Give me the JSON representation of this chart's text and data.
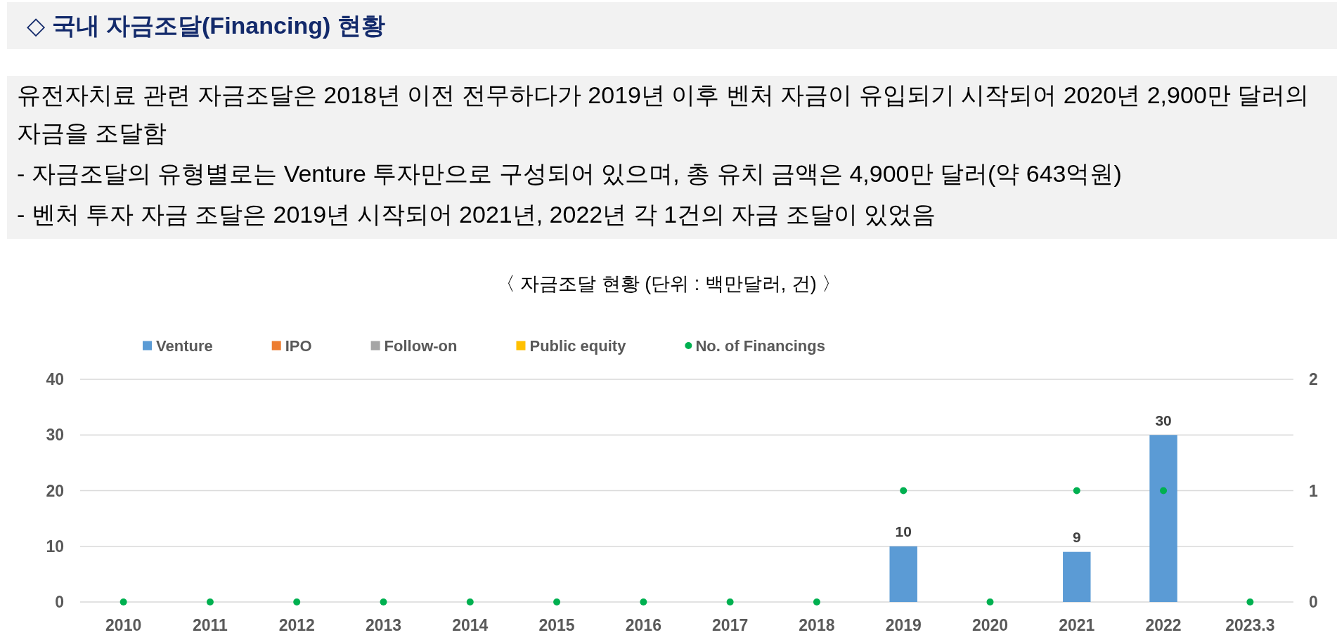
{
  "chart_data": {
    "type": "bar",
    "title": "◇ 국내 자금조달(Financing) 현황",
    "annotations": [
      "유전자치료 관련 자금조달은 2018년 이전 전무하다가 2019년 이후 벤처 자금이 유입되기 시작되어 2020년 2,900만 달러의 자금을 조달함",
      "- 자금조달의 유형별로는 Venture 투자만으로 구성되어 있으며, 총 유치 금액은 4,900만 달러(약 643억원)",
      "- 벤처 투자 자금 조달은 2019년 시작되어 2021년, 2022년 각 1건의 자금 조달이 있었음"
    ],
    "subtitle": "〈 자금조달 현황 (단위 : 백만달러, 건) 〉",
    "categories": [
      "2010",
      "2011",
      "2012",
      "2013",
      "2014",
      "2015",
      "2016",
      "2017",
      "2018",
      "2019",
      "2020",
      "2021",
      "2022",
      "2023.3"
    ],
    "stacked": true,
    "series": [
      {
        "name": "Venture",
        "color": "#5b9bd5",
        "values": [
          0,
          0,
          0,
          0,
          0,
          0,
          0,
          0,
          0,
          10,
          0,
          9,
          30,
          0
        ],
        "value_labels": [
          null,
          null,
          null,
          null,
          null,
          null,
          null,
          null,
          null,
          "10",
          null,
          "9",
          "30",
          null
        ]
      },
      {
        "name": "IPO",
        "color": "#ed7d31",
        "values": [
          0,
          0,
          0,
          0,
          0,
          0,
          0,
          0,
          0,
          0,
          0,
          0,
          0,
          0
        ]
      },
      {
        "name": "Follow-on",
        "color": "#a5a5a5",
        "values": [
          0,
          0,
          0,
          0,
          0,
          0,
          0,
          0,
          0,
          0,
          0,
          0,
          0,
          0
        ]
      },
      {
        "name": "Public equity",
        "color": "#ffc000",
        "values": [
          0,
          0,
          0,
          0,
          0,
          0,
          0,
          0,
          0,
          0,
          0,
          0,
          0,
          0
        ]
      },
      {
        "name": "No. of Financings",
        "type": "scatter",
        "axis": "y2",
        "color": "#00b050",
        "values": [
          0,
          0,
          0,
          0,
          0,
          0,
          0,
          0,
          0,
          1,
          0,
          1,
          1,
          0
        ]
      }
    ],
    "ylim": [
      0,
      40
    ],
    "yticks": [
      0,
      10,
      20,
      30,
      40
    ],
    "y2lim": [
      0,
      2
    ],
    "y2ticks": [
      0,
      1,
      2
    ],
    "grid": "y",
    "legend": "top",
    "marker": "circle"
  }
}
